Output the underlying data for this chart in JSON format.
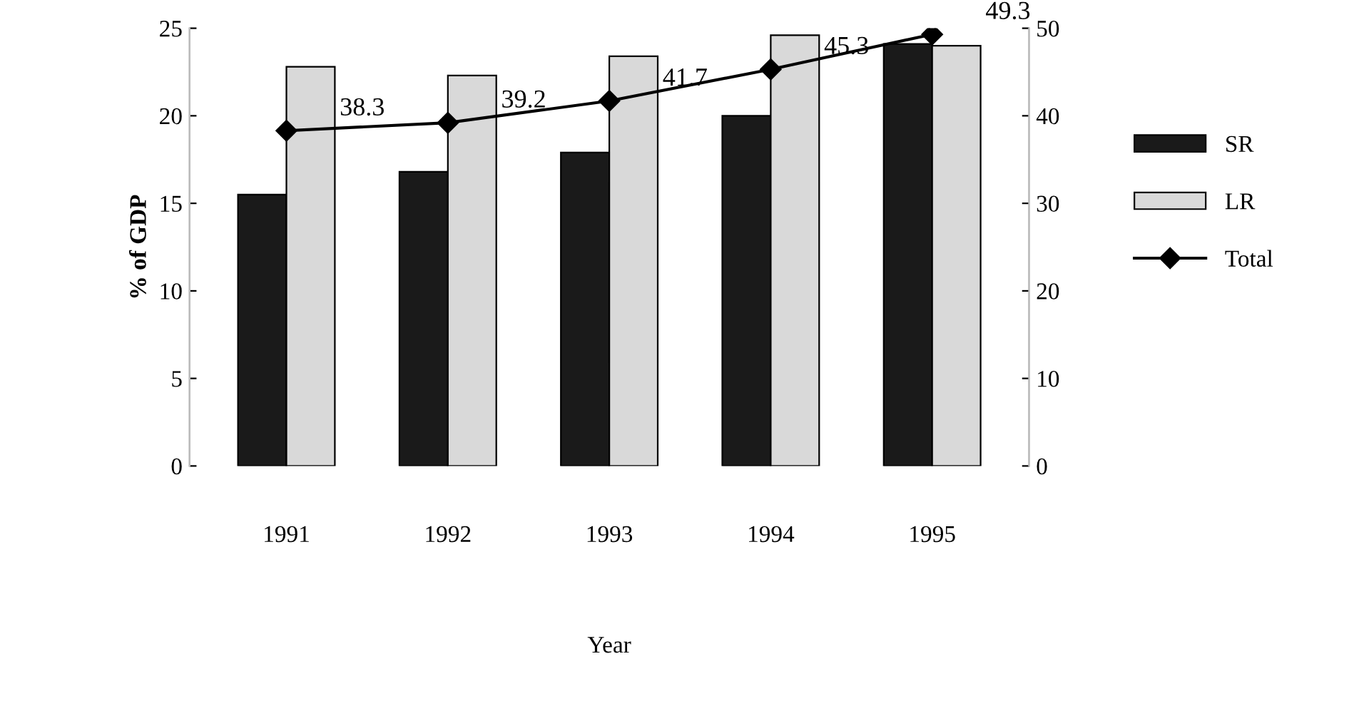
{
  "chart_data": {
    "type": "bar",
    "xlabel": "Year",
    "ylabel": "% of GDP",
    "categories": [
      "1991",
      "1992",
      "1993",
      "1994",
      "1995"
    ],
    "series": [
      {
        "name": "SR",
        "color": "#1a1a1a",
        "values": [
          15.5,
          16.8,
          17.9,
          20.0,
          24.1
        ]
      },
      {
        "name": "LR",
        "color": "#d9d9d9",
        "values": [
          22.8,
          22.3,
          23.4,
          24.6,
          24.0
        ]
      },
      {
        "name": "Total",
        "type": "line",
        "axis": "y2",
        "color": "#000000",
        "marker": "diamond",
        "data_labels": true,
        "values": [
          38.3,
          39.2,
          41.7,
          45.3,
          49.3
        ]
      }
    ],
    "ylim": [
      0,
      25
    ],
    "yticks": [
      0,
      5,
      10,
      15,
      20,
      25
    ],
    "y2lim": [
      0,
      50
    ],
    "y2ticks": [
      0,
      10,
      20,
      30,
      40,
      50
    ],
    "grid": false,
    "legend": "right"
  }
}
